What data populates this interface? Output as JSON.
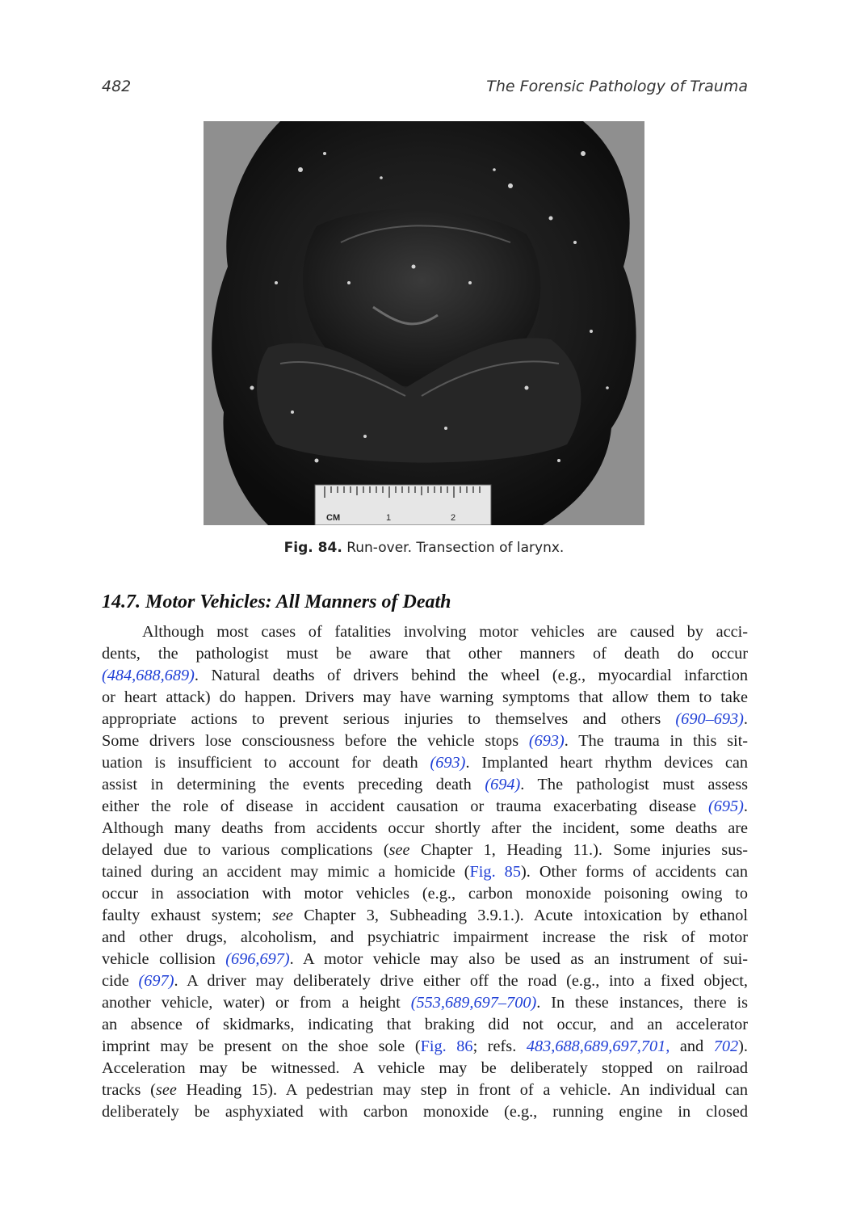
{
  "header": {
    "page_number": "482",
    "running_title": "The Forensic Pathology of Trauma"
  },
  "figure": {
    "ruler_unit": "CM",
    "ruler_mark_1": "1",
    "ruler_mark_2": "2",
    "caption_label": "Fig. 84.",
    "caption_text": "Run-over. Transection of larynx."
  },
  "section": {
    "heading": "14.7. Motor Vehicles: All Manners of Death"
  },
  "paragraph": {
    "lines": [
      [
        {
          "t": "Although most cases of fatalities involving motor vehicles are caused by acci-"
        }
      ],
      [
        {
          "t": "dents, the pathologist must be aware that other manners of death do occur"
        }
      ],
      [
        {
          "t": "(484,688,689)",
          "c": "ref"
        },
        {
          "t": ". Natural deaths of drivers behind the wheel (e.g., myocardial infarction"
        }
      ],
      [
        {
          "t": "or heart attack) do happen. Drivers may have warning symptoms that allow them to take"
        }
      ],
      [
        {
          "t": "appropriate actions to prevent serious injuries to themselves and others "
        },
        {
          "t": "(690–693)",
          "c": "ref"
        },
        {
          "t": "."
        }
      ],
      [
        {
          "t": "Some drivers lose consciousness before the vehicle stops "
        },
        {
          "t": "(693)",
          "c": "ref"
        },
        {
          "t": ". The trauma in this sit-"
        }
      ],
      [
        {
          "t": "uation is insufficient to account for death "
        },
        {
          "t": "(693)",
          "c": "ref"
        },
        {
          "t": ". Implanted heart rhythm devices can"
        }
      ],
      [
        {
          "t": "assist in determining the events preceding death "
        },
        {
          "t": "(694)",
          "c": "ref"
        },
        {
          "t": ". The pathologist must assess"
        }
      ],
      [
        {
          "t": "either the role of disease in accident causation or trauma exacerbating disease "
        },
        {
          "t": "(695)",
          "c": "ref"
        },
        {
          "t": "."
        }
      ],
      [
        {
          "t": "Although many deaths from accidents occur shortly after the incident, some deaths are"
        }
      ],
      [
        {
          "t": "delayed due to various complications ("
        },
        {
          "t": "see",
          "c": "em"
        },
        {
          "t": " Chapter 1, Heading 11.). Some injuries sus-"
        }
      ],
      [
        {
          "t": "tained during an accident may mimic a homicide ("
        },
        {
          "t": "Fig. 85",
          "c": "xref"
        },
        {
          "t": "). Other forms of accidents can"
        }
      ],
      [
        {
          "t": "occur in association with motor vehicles (e.g., carbon monoxide poisoning owing to"
        }
      ],
      [
        {
          "t": "faulty exhaust system; "
        },
        {
          "t": "see",
          "c": "em"
        },
        {
          "t": " Chapter 3, Subheading 3.9.1.). Acute intoxication by ethanol"
        }
      ],
      [
        {
          "t": "and other drugs, alcoholism, and psychiatric impairment increase the risk of motor"
        }
      ],
      [
        {
          "t": "vehicle collision "
        },
        {
          "t": "(696,697)",
          "c": "ref"
        },
        {
          "t": ". A motor vehicle may also be used as an instrument of sui-"
        }
      ],
      [
        {
          "t": "cide "
        },
        {
          "t": "(697)",
          "c": "ref"
        },
        {
          "t": ". A driver may deliberately drive either off the road (e.g., into a fixed object,"
        }
      ],
      [
        {
          "t": "another vehicle, water) or from a height "
        },
        {
          "t": "(553,689,697–700)",
          "c": "ref"
        },
        {
          "t": ". In these instances, there is"
        }
      ],
      [
        {
          "t": "an absence of skidmarks, indicating that braking did not occur, and an accelerator"
        }
      ],
      [
        {
          "t": "imprint may be present on the shoe sole ("
        },
        {
          "t": "Fig. 86",
          "c": "xref"
        },
        {
          "t": "; refs. "
        },
        {
          "t": "483,688,689,697,701,",
          "c": "ref"
        },
        {
          "t": " and "
        },
        {
          "t": "702",
          "c": "ref"
        },
        {
          "t": ")."
        }
      ],
      [
        {
          "t": "Acceleration may be witnessed. A vehicle may be deliberately stopped on railroad"
        }
      ],
      [
        {
          "t": "tracks ("
        },
        {
          "t": "see",
          "c": "em"
        },
        {
          "t": " Heading 15). A pedestrian may step in front of a vehicle. An individual can"
        }
      ],
      [
        {
          "t": "deliberately be asphyxiated with carbon monoxide (e.g., running engine in closed"
        }
      ]
    ]
  }
}
